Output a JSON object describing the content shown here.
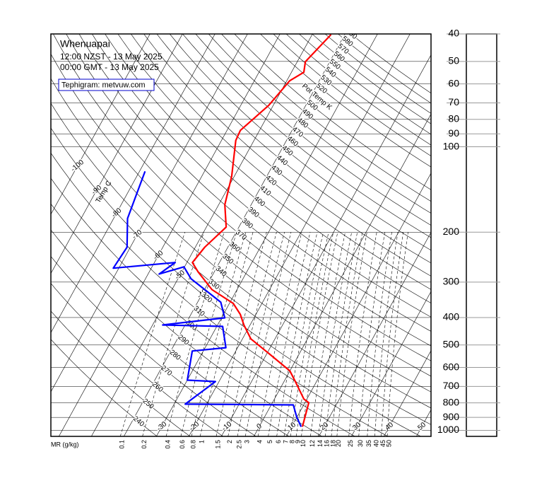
{
  "chart_data": {
    "type": "tephigram",
    "title": "Whenuapai",
    "subtitle": [
      "12:00 NZST - 13 May 2025",
      "00:00 GMT - 13 May 2025"
    ],
    "source": "Tephigram: metvuw.com",
    "log_scale": true,
    "ylim": [
      1050,
      40
    ],
    "yticks": [
      40,
      50,
      60,
      70,
      80,
      90,
      100,
      200,
      300,
      400,
      500,
      600,
      700,
      800,
      900,
      1000
    ],
    "isotherms": {
      "label": "Temp C",
      "values": [
        -100,
        -90,
        -80,
        -70,
        -60,
        -50,
        -40,
        -30,
        -20,
        -10,
        0,
        10,
        20,
        30,
        40,
        50
      ]
    },
    "isentropes": {
      "label": "Pot Temp K",
      "values": [
        240,
        250,
        260,
        270,
        280,
        290,
        300,
        310,
        320,
        330,
        340,
        350,
        360,
        370,
        380,
        390,
        400,
        410,
        420,
        430,
        440,
        450,
        460,
        470,
        480,
        490,
        500,
        520,
        530,
        540,
        550,
        560,
        570,
        580,
        590
      ]
    },
    "mixing_ratio": {
      "label": "MR (g/kg)",
      "values": [
        0.1,
        0.2,
        0.4,
        0.6,
        0.8,
        1,
        1.5,
        2,
        2.5,
        3,
        4,
        5,
        6,
        7,
        8,
        9,
        10,
        12,
        14,
        16,
        18,
        20,
        25,
        30,
        35,
        40,
        45,
        50
      ]
    },
    "series": [
      {
        "color": "#ff0000",
        "pressure": [
          971,
          799,
          776,
          673,
          617,
          534,
          476,
          425,
          390,
          357,
          319,
          276,
          256,
          226,
          192,
          160,
          127,
          95,
          87.5,
          71.5,
          58.5,
          54.6,
          50.1,
          40.2
        ],
        "values": [
          13.3,
          11.2,
          9.1,
          3.5,
          0.0,
          -9.6,
          -17.4,
          -21.9,
          -24.8,
          -28.8,
          -37.7,
          -45.0,
          -48.3,
          -47.1,
          -43.9,
          -48.1,
          -50.8,
          -55.6,
          -55.9,
          -51.4,
          -49.1,
          -46.2,
          -47.5,
          -44.2
        ]
      },
      {
        "color": "#0000ff",
        "pressure": [
          971,
          897,
          813,
          808,
          673,
          665,
          525,
          511,
          430,
          425,
          401,
          353,
          292,
          265,
          281,
          256,
          268,
          226,
          179,
          122
        ],
        "values": [
          12.9,
          9.9,
          6.8,
          -26.6,
          -21.1,
          -30.0,
          -33.4,
          -23.6,
          -28.2,
          -46.9,
          -29.0,
          -32.9,
          -46.0,
          -50.2,
          -56.6,
          -53.6,
          -71.7,
          -71.0,
          -75.7,
          -78.3
        ]
      }
    ]
  }
}
